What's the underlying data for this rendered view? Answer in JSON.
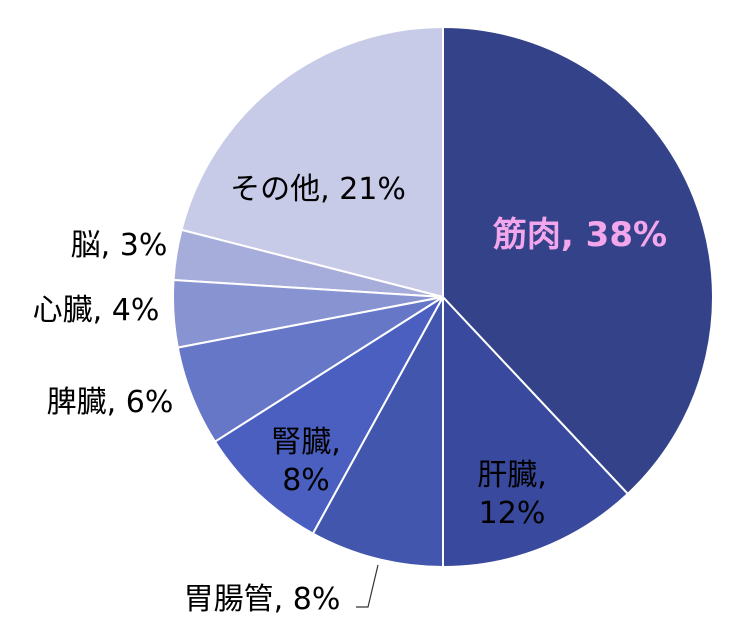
{
  "chart_data": {
    "type": "pie",
    "values": [
      38,
      12,
      8,
      8,
      6,
      4,
      3,
      21
    ],
    "value_labels": [
      "筋肉, 38%",
      "肝臓, 12%",
      "胃腸管, 8%",
      "腎臓, 8%",
      "脾臓, 6%",
      "心臓, 4%",
      "脳, 3%",
      "その他, 21%"
    ],
    "colors": [
      "#344389",
      "#39499d",
      "#4256ad",
      "#4a5fbf",
      "#6677c8",
      "#8893d2",
      "#a7addb",
      "#c8cbe8"
    ],
    "label_colors": [
      "#f4a6ec",
      "#000000",
      "#000000",
      "#000000",
      "#000000",
      "#000000",
      "#000000",
      "#000000"
    ]
  }
}
